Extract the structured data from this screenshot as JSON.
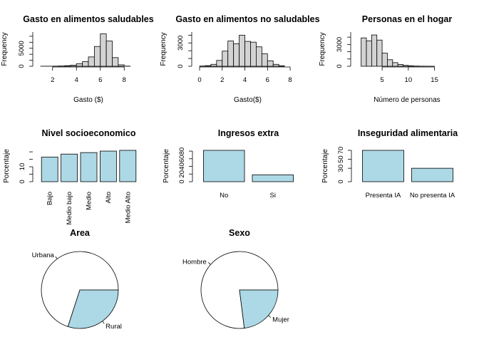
{
  "chart_data": [
    {
      "type": "bar",
      "subtype": "histogram",
      "title": "Gasto en alimentos saludables",
      "xlabel": "Gasto ($)",
      "ylabel": "Frequency",
      "xlim": [
        1,
        9
      ],
      "ylim": [
        0,
        9500
      ],
      "x_ticks": [
        "2",
        "4",
        "6",
        "8"
      ],
      "y_ticks": [
        "0",
        "5000"
      ],
      "bins": [
        [
          1.0,
          1.5
        ],
        [
          1.5,
          2.0
        ],
        [
          2.0,
          2.5
        ],
        [
          2.5,
          3.0
        ],
        [
          3.0,
          3.5
        ],
        [
          3.5,
          4.0
        ],
        [
          4.0,
          4.5
        ],
        [
          4.5,
          5.0
        ],
        [
          5.0,
          5.5
        ],
        [
          5.5,
          6.0
        ],
        [
          6.0,
          6.5
        ],
        [
          6.5,
          7.0
        ],
        [
          7.0,
          7.5
        ],
        [
          7.5,
          8.0
        ],
        [
          8.0,
          8.5
        ]
      ],
      "values": [
        15,
        20,
        40,
        80,
        150,
        300,
        700,
        1300,
        2600,
        5500,
        9000,
        7000,
        2400,
        400,
        40
      ],
      "bar_color": "#d3d3d3"
    },
    {
      "type": "bar",
      "subtype": "histogram",
      "title": "Gasto en alimentos no saludables",
      "xlabel": "Gasto($)",
      "ylabel": "Frequency",
      "xlim": [
        0,
        8.5
      ],
      "ylim": [
        0,
        4400
      ],
      "x_ticks": [
        "0",
        "2",
        "4",
        "6",
        "8"
      ],
      "y_ticks": [
        "0",
        "3000"
      ],
      "bins": [
        [
          0.0,
          0.5
        ],
        [
          0.5,
          1.0
        ],
        [
          1.0,
          1.5
        ],
        [
          1.5,
          2.0
        ],
        [
          2.0,
          2.5
        ],
        [
          2.5,
          3.0
        ],
        [
          3.0,
          3.5
        ],
        [
          3.5,
          4.0
        ],
        [
          4.0,
          4.5
        ],
        [
          4.5,
          5.0
        ],
        [
          5.0,
          5.5
        ],
        [
          5.5,
          6.0
        ],
        [
          6.0,
          6.5
        ],
        [
          6.5,
          7.0
        ],
        [
          7.0,
          7.5
        ]
      ],
      "values": [
        30,
        80,
        250,
        750,
        1950,
        3250,
        2900,
        4000,
        3200,
        3100,
        2500,
        1600,
        700,
        250,
        60
      ],
      "bar_color": "#d3d3d3"
    },
    {
      "type": "bar",
      "subtype": "histogram",
      "title": "Personas en el hogar",
      "xlabel": "Número de personas",
      "ylabel": "Frequency",
      "xlim": [
        0.5,
        19
      ],
      "ylim": [
        0,
        4700
      ],
      "x_ticks": [
        "5",
        "10",
        "15"
      ],
      "y_ticks": [
        "0",
        "3000"
      ],
      "bins": [
        [
          1,
          2
        ],
        [
          2,
          3
        ],
        [
          3,
          4
        ],
        [
          4,
          5
        ],
        [
          5,
          6
        ],
        [
          6,
          7
        ],
        [
          7,
          8
        ],
        [
          8,
          9
        ],
        [
          9,
          10
        ],
        [
          10,
          11
        ],
        [
          11,
          12
        ],
        [
          12,
          13
        ],
        [
          13,
          14
        ],
        [
          14,
          15
        ]
      ],
      "values": [
        3900,
        3500,
        4300,
        3600,
        1800,
        900,
        500,
        250,
        120,
        60,
        30,
        15,
        8,
        4
      ],
      "bar_color": "#d3d3d3"
    },
    {
      "type": "bar",
      "title": "Nivel socioeconomico",
      "ylabel": "Porcentaje",
      "categories": [
        "Bajo",
        "Medio bajo",
        "Medio",
        "Alto",
        "Medio Alto"
      ],
      "values": [
        16.5,
        18.5,
        19.5,
        20.5,
        21.0
      ],
      "ylim": [
        0,
        21
      ],
      "y_ticks": [
        "0",
        "10"
      ],
      "bar_color": "#add8e6"
    },
    {
      "type": "bar",
      "title": "Ingresos extra",
      "ylabel": "Porcentaje",
      "categories": [
        "No",
        "Si"
      ],
      "values": [
        82,
        18
      ],
      "ylim": [
        0,
        82
      ],
      "y_ticks": [
        "0",
        "20",
        "40",
        "60",
        "80"
      ],
      "bar_color": "#add8e6"
    },
    {
      "type": "bar",
      "title": "Inseguridad alimentaria",
      "ylabel": "Porcentaje",
      "categories": [
        "Presenta IA",
        "No presenta IA"
      ],
      "values": [
        70,
        30
      ],
      "ylim": [
        0,
        70
      ],
      "y_ticks": [
        "0",
        "30",
        "50",
        "70"
      ],
      "bar_color": "#add8e6"
    },
    {
      "type": "pie",
      "title": "Area",
      "labels": [
        "Urbana",
        "Rural"
      ],
      "values": [
        70,
        30
      ],
      "colors": [
        "#ffffff",
        "#add8e6"
      ]
    },
    {
      "type": "pie",
      "title": "Sexo",
      "labels": [
        "Hombre",
        "Mujer"
      ],
      "values": [
        77,
        23
      ],
      "colors": [
        "#ffffff",
        "#add8e6"
      ]
    }
  ]
}
